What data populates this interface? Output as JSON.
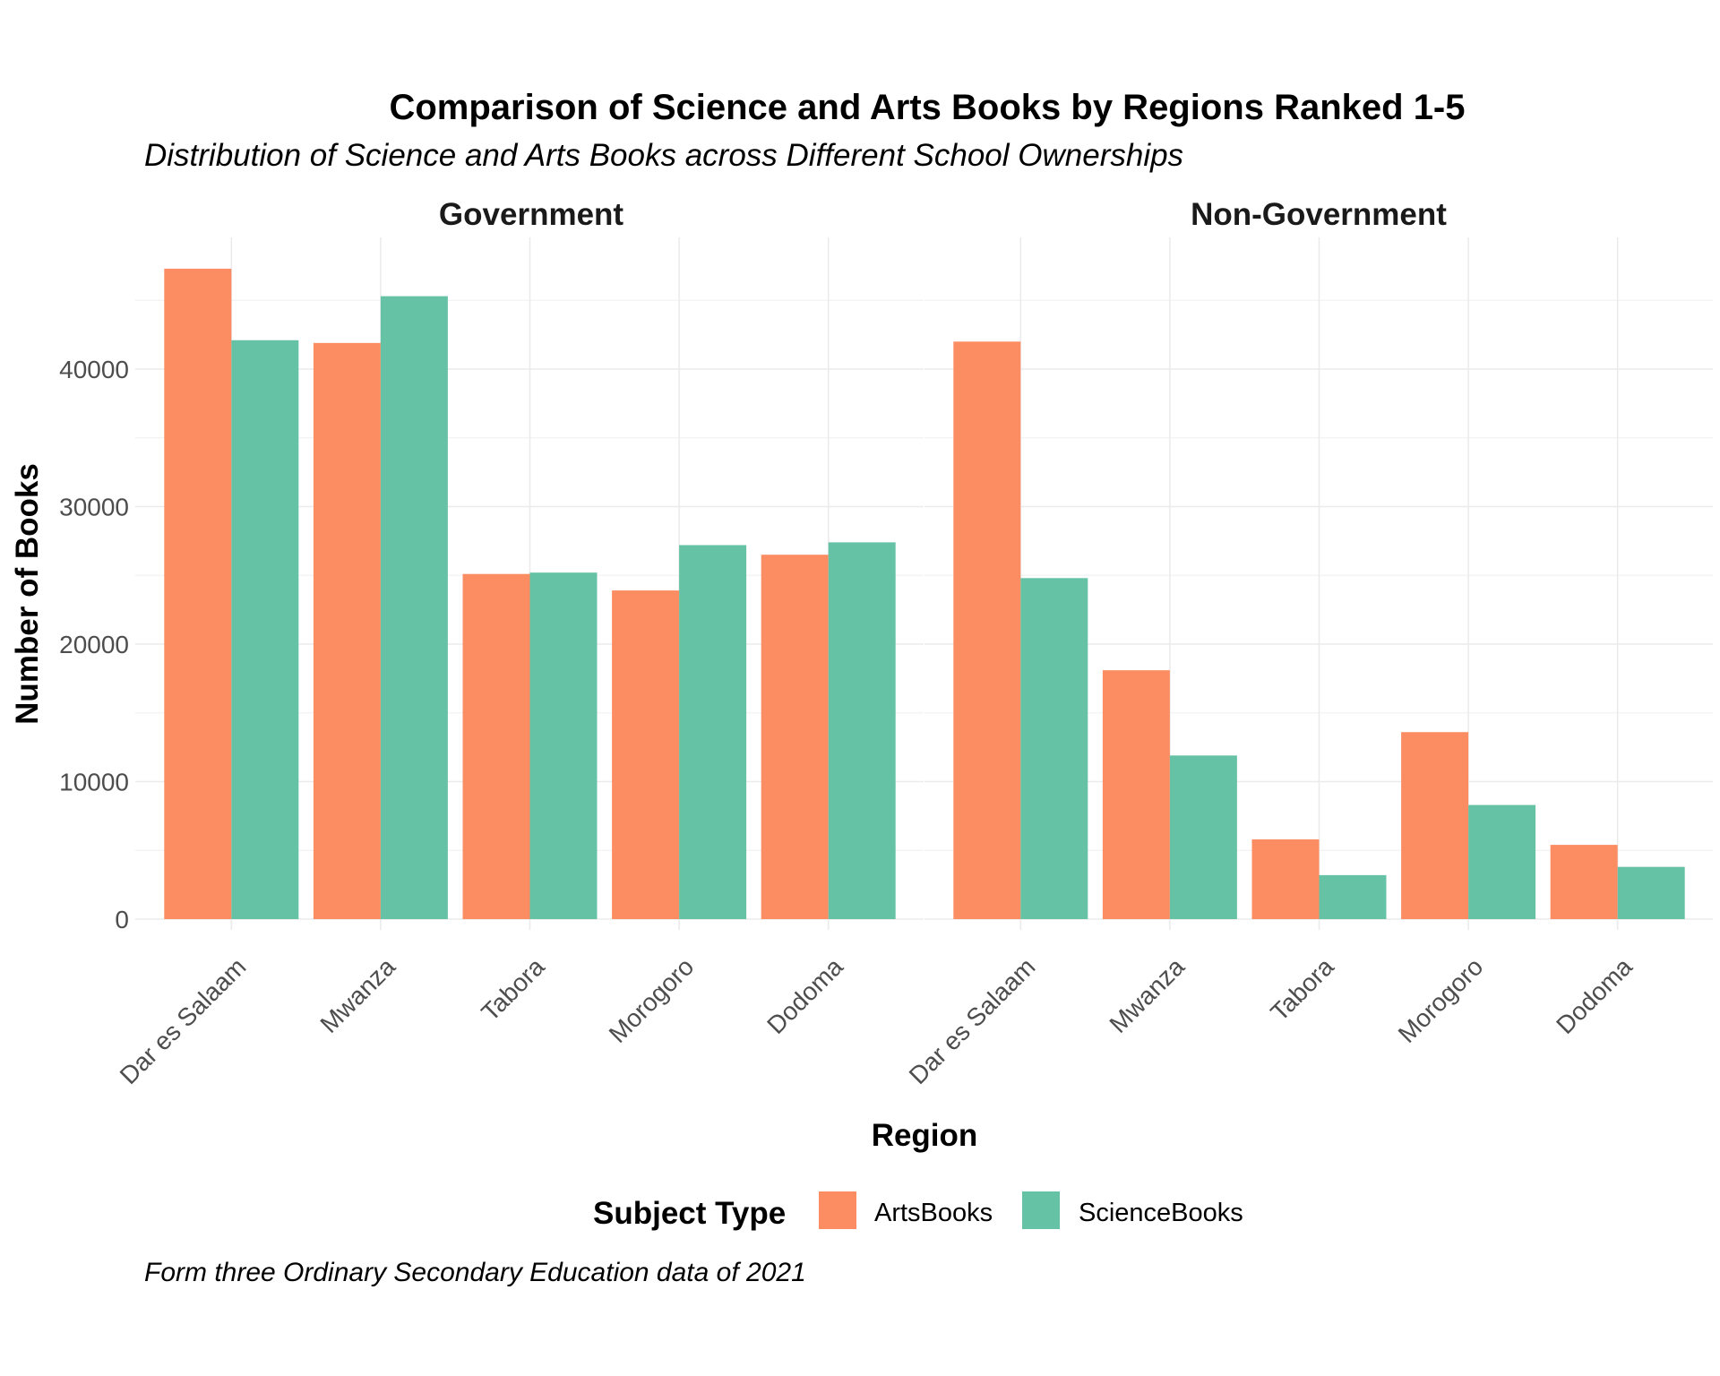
{
  "chart_data": {
    "type": "bar",
    "title": "Comparison of Science and Arts Books by Regions Ranked 1-5",
    "subtitle": "Distribution of Science and Arts Books across Different School Ownerships",
    "xlabel": "Region",
    "ylabel": "Number of Books",
    "caption": "Form three Ordinary Secondary Education data of 2021",
    "ylim": [
      0,
      50000
    ],
    "y_ticks": [
      "0",
      "10000",
      "20000",
      "30000",
      "40000"
    ],
    "grid": true,
    "legend": {
      "title": "Subject Type",
      "placement": "bottom",
      "entries": [
        {
          "name": "ArtsBooks",
          "color": "#fc8d62"
        },
        {
          "name": "ScienceBooks",
          "color": "#66c2a5"
        }
      ]
    },
    "panels": [
      {
        "name": "Government",
        "categories": [
          "Dar es Salaam",
          "Mwanza",
          "Tabora",
          "Morogoro",
          "Dodoma"
        ],
        "series": [
          {
            "name": "ArtsBooks",
            "values": [
              47300,
              41900,
              25100,
              23900,
              26500
            ]
          },
          {
            "name": "ScienceBooks",
            "values": [
              42100,
              45300,
              25200,
              27200,
              27400
            ]
          }
        ]
      },
      {
        "name": "Non-Government",
        "categories": [
          "Dar es Salaam",
          "Mwanza",
          "Tabora",
          "Morogoro",
          "Dodoma"
        ],
        "series": [
          {
            "name": "ArtsBooks",
            "values": [
              42000,
              18100,
              5800,
              13600,
              5400
            ]
          },
          {
            "name": "ScienceBooks",
            "values": [
              24800,
              11900,
              3200,
              8300,
              3800
            ]
          }
        ]
      }
    ]
  }
}
